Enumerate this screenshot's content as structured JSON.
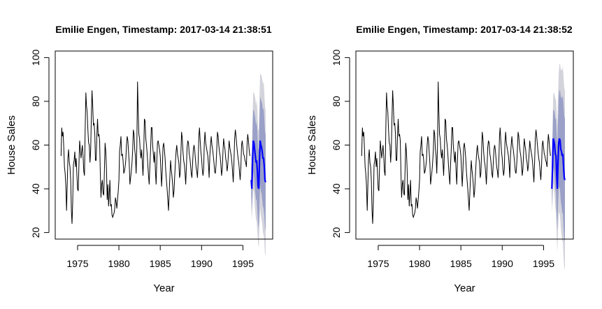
{
  "chart_data": [
    {
      "type": "line",
      "title": "Emilie Engen, Timestamp: 2017-03-14 21:38:51",
      "xlabel": "Year",
      "ylabel": "House Sales",
      "xlim": [
        1972.3,
        1998.6
      ],
      "ylim": [
        17,
        103
      ],
      "x_ticks": [
        1975,
        1980,
        1985,
        1990,
        1995
      ],
      "y_ticks": [
        20,
        40,
        60,
        80,
        100
      ],
      "grid": false,
      "legend": "none",
      "colors": {
        "history": "#000000",
        "forecast": "#0000ff",
        "band80": "#9aa0c7",
        "band95": "#d3d3dc"
      },
      "series": [
        {
          "role": "history",
          "x_start": 1973.0,
          "step": 0.0833333,
          "values": [
            55,
            68,
            64,
            66,
            59,
            50,
            47,
            41,
            30,
            41,
            54,
            58,
            52,
            50,
            44,
            30,
            24,
            34,
            51,
            53,
            57,
            50,
            54,
            47,
            40,
            39,
            51,
            62,
            58,
            54,
            57,
            60,
            55,
            48,
            46,
            67,
            84,
            78,
            75,
            67,
            61,
            60,
            52,
            58,
            72,
            85,
            78,
            69,
            70,
            65,
            53,
            53,
            64,
            72,
            64,
            65,
            62,
            48,
            36,
            42,
            44,
            38,
            37,
            49,
            61,
            57,
            49,
            35,
            42,
            32,
            38,
            44,
            32,
            33,
            28,
            27,
            28,
            29,
            31,
            36,
            34,
            31,
            35,
            39,
            44,
            57,
            60,
            64,
            55,
            56,
            53,
            47,
            48,
            50,
            53,
            60,
            64,
            62,
            57,
            52,
            42,
            45,
            48,
            52,
            58,
            67,
            65,
            58,
            55,
            47,
            59,
            89,
            76,
            65,
            63,
            57,
            54,
            58,
            52,
            46,
            55,
            72,
            71,
            63,
            60,
            56,
            51,
            46,
            42,
            51,
            58,
            68,
            68,
            60,
            56,
            52,
            57,
            48,
            42,
            53,
            61,
            62,
            60,
            58,
            55,
            48,
            41,
            48,
            59,
            61,
            58,
            54,
            48,
            44,
            40,
            35,
            30,
            38,
            46,
            53,
            49,
            46,
            42,
            36,
            39,
            46,
            52,
            57,
            60,
            56,
            54,
            52,
            45,
            47,
            56,
            66,
            63,
            57,
            53,
            51,
            47,
            42,
            50,
            59,
            62,
            61,
            56,
            54,
            51,
            47,
            45,
            52,
            58,
            60,
            58,
            54,
            50,
            48,
            45,
            52,
            64,
            68,
            62,
            57,
            54,
            49,
            46,
            49,
            61,
            66,
            61,
            59,
            57,
            55,
            51,
            45,
            55,
            60,
            64,
            60,
            58,
            55,
            52,
            48,
            47,
            51,
            58,
            66,
            64,
            60,
            57,
            55,
            51,
            46,
            49,
            57,
            63,
            60,
            58,
            54,
            52,
            48,
            51,
            56,
            62,
            59,
            57,
            55,
            52,
            48,
            43,
            52,
            63,
            67,
            64,
            60,
            57,
            54,
            52,
            48,
            44,
            50,
            60,
            62,
            59,
            56,
            55,
            53,
            52,
            50,
            60,
            65,
            62,
            58,
            55
          ]
        },
        {
          "role": "forecast",
          "x_start": 1996.0,
          "step": 0.0833333,
          "values": [
            44,
            40,
            53,
            62,
            61,
            58,
            55,
            52,
            53,
            48,
            41,
            40,
            52,
            62,
            60,
            59,
            57,
            54,
            54,
            50,
            44,
            43
          ],
          "lo80": [
            36,
            31,
            40,
            48,
            46,
            42,
            38,
            35,
            35,
            30,
            24,
            22,
            33,
            42,
            39,
            38,
            35,
            32,
            31,
            28,
            22,
            21
          ],
          "hi80": [
            52,
            49,
            66,
            76,
            76,
            74,
            72,
            69,
            71,
            66,
            58,
            58,
            71,
            82,
            81,
            80,
            79,
            76,
            77,
            72,
            66,
            65
          ],
          "lo95": [
            31,
            26,
            33,
            40,
            38,
            33,
            29,
            26,
            25,
            20,
            15,
            13,
            23,
            31,
            28,
            26,
            24,
            20,
            19,
            16,
            10,
            10
          ],
          "hi95": [
            57,
            54,
            73,
            84,
            84,
            83,
            81,
            78,
            81,
            76,
            67,
            67,
            81,
            93,
            92,
            92,
            90,
            88,
            89,
            84,
            78,
            76
          ]
        }
      ]
    },
    {
      "type": "line",
      "title": "Emilie Engen, Timestamp: 2017-03-14 21:38:52",
      "xlabel": "Year",
      "ylabel": "House Sales",
      "xlim": [
        1972.3,
        1998.6
      ],
      "ylim": [
        17,
        103
      ],
      "x_ticks": [
        1975,
        1980,
        1985,
        1990,
        1995
      ],
      "y_ticks": [
        20,
        40,
        60,
        80,
        100
      ],
      "grid": false,
      "legend": "none",
      "colors": {
        "history": "#000000",
        "forecast": "#0000ff",
        "band80": "#9aa0c7",
        "band95": "#d3d3dc"
      },
      "series": [
        {
          "role": "history",
          "x_start": 1973.0,
          "step": 0.0833333,
          "values": [
            55,
            68,
            64,
            66,
            59,
            50,
            47,
            41,
            30,
            41,
            54,
            58,
            52,
            50,
            44,
            30,
            24,
            34,
            51,
            53,
            57,
            50,
            54,
            47,
            40,
            39,
            51,
            62,
            58,
            54,
            57,
            60,
            55,
            48,
            46,
            67,
            84,
            78,
            75,
            67,
            61,
            60,
            52,
            58,
            72,
            85,
            78,
            69,
            70,
            65,
            53,
            53,
            64,
            72,
            64,
            65,
            62,
            48,
            36,
            42,
            44,
            38,
            37,
            49,
            61,
            57,
            49,
            35,
            42,
            32,
            38,
            44,
            32,
            33,
            28,
            27,
            28,
            29,
            31,
            36,
            34,
            31,
            35,
            39,
            44,
            57,
            60,
            64,
            55,
            56,
            53,
            47,
            48,
            50,
            53,
            60,
            64,
            62,
            57,
            52,
            42,
            45,
            48,
            52,
            58,
            67,
            65,
            58,
            55,
            47,
            59,
            89,
            76,
            65,
            63,
            57,
            54,
            58,
            52,
            46,
            55,
            72,
            71,
            63,
            60,
            56,
            51,
            46,
            42,
            51,
            58,
            68,
            68,
            60,
            56,
            52,
            57,
            48,
            42,
            53,
            61,
            62,
            60,
            58,
            55,
            48,
            41,
            48,
            59,
            61,
            58,
            54,
            48,
            44,
            40,
            35,
            30,
            38,
            46,
            53,
            49,
            46,
            42,
            36,
            39,
            46,
            52,
            57,
            60,
            56,
            54,
            52,
            45,
            47,
            56,
            66,
            63,
            57,
            53,
            51,
            47,
            42,
            50,
            59,
            62,
            61,
            56,
            54,
            51,
            47,
            45,
            52,
            58,
            60,
            58,
            54,
            50,
            48,
            45,
            52,
            64,
            68,
            62,
            57,
            54,
            49,
            46,
            49,
            61,
            66,
            61,
            59,
            57,
            55,
            51,
            45,
            55,
            60,
            64,
            60,
            58,
            55,
            52,
            48,
            47,
            51,
            58,
            66,
            64,
            60,
            57,
            55,
            51,
            46,
            49,
            57,
            63,
            60,
            58,
            54,
            52,
            48,
            51,
            56,
            62,
            59,
            57,
            55,
            52,
            48,
            43,
            52,
            63,
            67,
            64,
            60,
            57,
            54,
            52,
            48,
            44,
            50,
            60,
            62,
            59,
            56,
            55,
            53,
            52,
            50,
            60,
            65,
            62,
            58,
            55
          ]
        },
        {
          "role": "forecast",
          "x_start": 1996.0,
          "step": 0.0833333,
          "values": [
            40,
            50,
            63,
            62,
            60,
            56,
            55,
            46,
            40,
            52,
            61,
            63,
            62,
            58,
            57,
            55,
            56,
            50,
            45,
            44
          ],
          "lo80": [
            33,
            39,
            50,
            48,
            45,
            40,
            38,
            28,
            21,
            32,
            40,
            41,
            39,
            34,
            32,
            29,
            29,
            22,
            17,
            16
          ],
          "hi80": [
            47,
            61,
            76,
            76,
            75,
            72,
            72,
            64,
            59,
            72,
            82,
            85,
            85,
            82,
            82,
            81,
            83,
            78,
            73,
            72
          ],
          "lo95": [
            29,
            33,
            43,
            40,
            37,
            31,
            29,
            18,
            11,
            21,
            29,
            29,
            27,
            22,
            19,
            16,
            16,
            9,
            4,
            3
          ],
          "hi95": [
            51,
            67,
            83,
            84,
            83,
            81,
            81,
            74,
            69,
            83,
            93,
            97,
            97,
            94,
            95,
            94,
            96,
            91,
            86,
            85
          ]
        }
      ]
    }
  ]
}
